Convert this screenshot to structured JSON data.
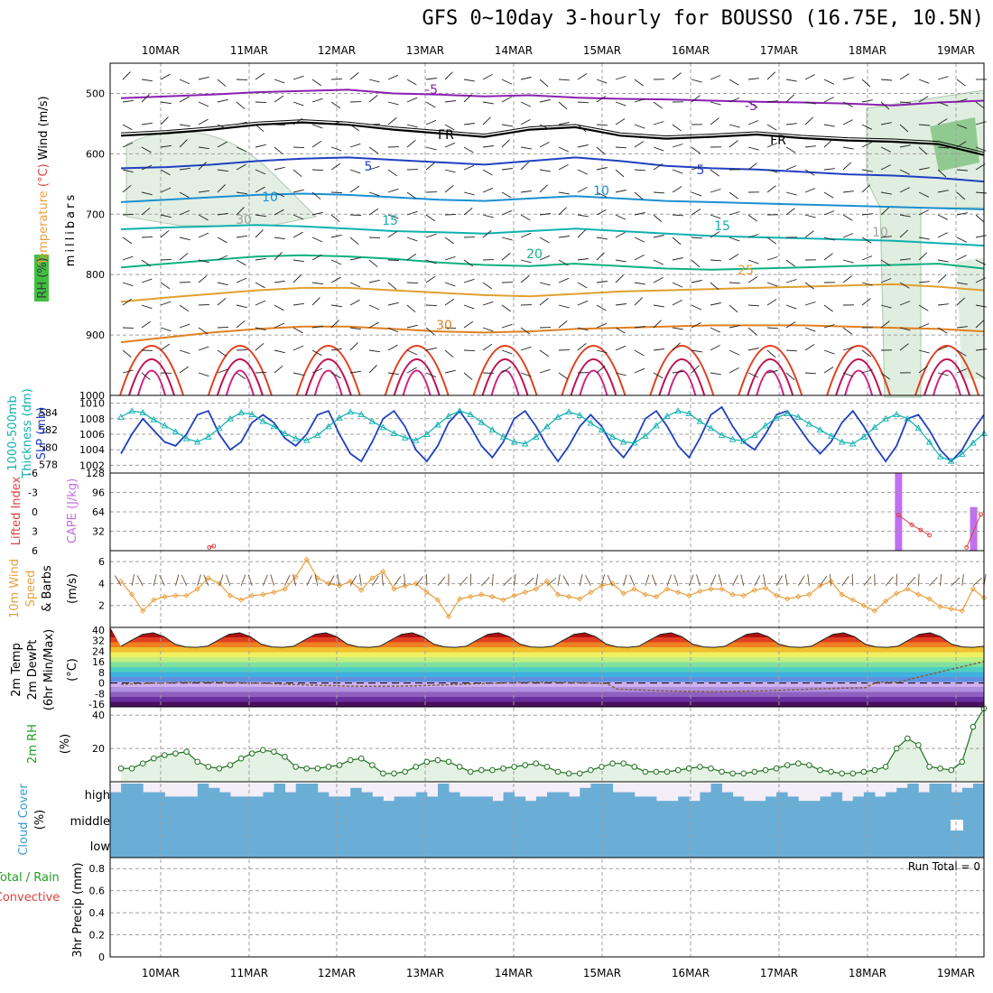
{
  "title": "GFS 0~10day 3-hourly for BOUSSO (16.75E, 10.5N)",
  "dates": [
    "10MAR",
    "11MAR",
    "12MAR",
    "13MAR",
    "14MAR",
    "15MAR",
    "16MAR",
    "17MAR",
    "18MAR",
    "19MAR"
  ],
  "chart_data": [
    {
      "type": "line",
      "panel": "upper-air",
      "labels": {
        "left_parts": [
          {
            "text": "RH (%)",
            "color": "#3a3a3a"
          },
          {
            "text": "Temperature",
            "color": "#e8a040"
          },
          {
            "text": "(°C)",
            "color": "#e04040"
          },
          {
            "text": "Wind (m/s)",
            "color": "#000000"
          }
        ],
        "ylabel": "millibars"
      },
      "yticks": [
        500,
        600,
        700,
        800,
        900,
        1000
      ],
      "ylim": [
        450,
        1000
      ],
      "contour_labels": [
        {
          "text": "-5",
          "color": "#8a20b0"
        },
        {
          "text": "-5",
          "color": "#8a20b0"
        },
        {
          "text": "FR",
          "color": "#000000"
        },
        {
          "text": "FR",
          "color": "#000000"
        },
        {
          "text": "5",
          "color": "#2040c0"
        },
        {
          "text": "5",
          "color": "#2040c0"
        },
        {
          "text": "10",
          "color": "#1a90d0"
        },
        {
          "text": "10",
          "color": "#1a90d0"
        },
        {
          "text": "15",
          "color": "#10b0b0"
        },
        {
          "text": "15",
          "color": "#10b0b0"
        },
        {
          "text": "20",
          "color": "#10b080"
        },
        {
          "text": "25",
          "color": "#e0a030"
        },
        {
          "text": "30",
          "color": "#e08020"
        },
        {
          "text": "30",
          "color": "#a0a0a0"
        },
        {
          "text": "10",
          "color": "#a0a0a0"
        }
      ],
      "series": [
        {
          "name": "-5",
          "color": "#8a20b0",
          "mb": [
            508,
            505,
            502,
            498,
            496,
            494,
            500,
            502,
            505,
            503,
            507,
            509,
            510,
            512,
            514,
            515,
            517,
            520,
            515,
            512
          ]
        },
        {
          "name": "FR",
          "color": "#000000",
          "mb": [
            570,
            566,
            560,
            552,
            548,
            552,
            560,
            566,
            572,
            560,
            556,
            570,
            575,
            572,
            568,
            574,
            578,
            580,
            584,
            602
          ]
        },
        {
          "name": "5",
          "color": "#2040c0",
          "mb": [
            624,
            622,
            618,
            612,
            608,
            606,
            610,
            614,
            618,
            612,
            606,
            612,
            620,
            624,
            626,
            630,
            634,
            636,
            640,
            646
          ]
        },
        {
          "name": "10",
          "color": "#1a90d0",
          "mb": [
            680,
            676,
            672,
            668,
            666,
            668,
            672,
            676,
            678,
            674,
            670,
            674,
            678,
            680,
            682,
            684,
            686,
            688,
            690,
            692
          ]
        },
        {
          "name": "15",
          "color": "#10b0b0",
          "mb": [
            725,
            722,
            720,
            718,
            720,
            724,
            728,
            730,
            732,
            728,
            724,
            728,
            732,
            736,
            738,
            740,
            742,
            744,
            748,
            752
          ]
        },
        {
          "name": "20",
          "color": "#10b080",
          "mb": [
            788,
            782,
            776,
            770,
            768,
            770,
            774,
            780,
            784,
            786,
            782,
            786,
            790,
            792,
            790,
            788,
            786,
            784,
            782,
            790
          ]
        },
        {
          "name": "25",
          "color": "#e0a030",
          "mb": [
            845,
            838,
            832,
            826,
            822,
            822,
            826,
            830,
            834,
            836,
            832,
            828,
            826,
            824,
            822,
            820,
            818,
            816,
            820,
            826
          ]
        },
        {
          "name": "30",
          "color": "#e08020",
          "mb": [
            912,
            904,
            896,
            890,
            886,
            886,
            890,
            894,
            896,
            894,
            890,
            888,
            886,
            884,
            884,
            884,
            886,
            888,
            890,
            894
          ]
        }
      ]
    },
    {
      "type": "line",
      "panel": "slp-thickness",
      "labels": {
        "left_parts": [
          {
            "text": "1000-500mb",
            "color": "#10b0b0"
          },
          {
            "text": "Thickness (dm)",
            "color": "#10b0b0"
          },
          {
            "text": "SLP (mb)",
            "color": "#2040c0"
          }
        ]
      },
      "yticks_left": [
        578,
        580,
        582,
        584
      ],
      "yticks_right": [
        1002,
        1004,
        1006,
        1008,
        1010
      ],
      "ylim_left": [
        577,
        586
      ],
      "ylim_right": [
        1001,
        1011
      ],
      "series": [
        {
          "name": "SLP (mb)",
          "color": "#2040c0",
          "axis": "right",
          "y": [
            1003.5,
            1006,
            1008,
            1006.5,
            1005,
            1004.5,
            1006,
            1008.5,
            1009,
            1006,
            1004,
            1005,
            1007.5,
            1008.5,
            1007.5,
            1005.5,
            1004.5,
            1006,
            1008.5,
            1009,
            1006,
            1003.5,
            1002.5,
            1005,
            1008,
            1009,
            1007,
            1004,
            1002.5,
            1004.5,
            1007.5,
            1009,
            1007,
            1004.5,
            1003,
            1005,
            1008,
            1009,
            1007,
            1004.5,
            1002.5,
            1004.5,
            1007,
            1008.5,
            1007,
            1004.5,
            1003,
            1005,
            1008,
            1009,
            1007,
            1004.5,
            1003,
            1005.5,
            1008.5,
            1009.5,
            1007,
            1005,
            1004,
            1006,
            1008.5,
            1009,
            1007,
            1005,
            1003.5,
            1005,
            1007.5,
            1009,
            1007,
            1004.5,
            1002.5,
            1004.5,
            1008,
            1008.5,
            1006.5,
            1004,
            1002.5,
            1004,
            1006.5,
            1008.5
          ]
        },
        {
          "name": "Thickness (dm)",
          "color": "#10b0b0",
          "axis": "left",
          "y": [
            583.5,
            584.2,
            584.0,
            583.2,
            582.5,
            581.8,
            581.0,
            580.6,
            581.2,
            582.2,
            583.3,
            584.0,
            583.8,
            583.0,
            582.4,
            581.6,
            581.0,
            580.8,
            581.4,
            582.4,
            583.4,
            584.1,
            583.8,
            583.0,
            582.3,
            581.6,
            581.1,
            580.8,
            581.5,
            582.6,
            583.6,
            584.2,
            583.8,
            582.9,
            582.0,
            581.2,
            580.6,
            580.4,
            581.2,
            582.4,
            583.5,
            584.1,
            583.7,
            582.8,
            582.0,
            581.2,
            580.6,
            580.5,
            581.3,
            582.5,
            583.6,
            584.2,
            583.9,
            583.0,
            582.2,
            581.4,
            580.9,
            580.7,
            581.4,
            582.5,
            583.4,
            583.9,
            583.5,
            582.7,
            582.0,
            581.3,
            580.6,
            580.4,
            581.2,
            582.3,
            583.3,
            583.8,
            583.3,
            582.2,
            580.6,
            578.9,
            578.4,
            579.2,
            580.5,
            581.6
          ]
        }
      ]
    },
    {
      "type": "bar",
      "panel": "cape-li",
      "labels": {
        "left_parts": [
          {
            "text": "Lifted Index",
            "color": "#e04040"
          },
          {
            "text": "CAPE (J/kg)",
            "color": "#c070e0"
          }
        ]
      },
      "yticks_left": [
        6,
        3,
        0,
        -3,
        -6
      ],
      "yticks_right": [
        32,
        64,
        96,
        128
      ],
      "ylim_right": [
        0,
        128
      ],
      "cape_bars": [
        {
          "date_index": 8.35,
          "value": 128
        },
        {
          "date_index": 9.2,
          "value": 72
        }
      ],
      "li_points": [
        {
          "date_index": 0.55,
          "value": 5.5
        },
        {
          "date_index": 0.6,
          "value": 5.3
        },
        {
          "date_index": 8.35,
          "value": 0.5
        },
        {
          "date_index": 8.5,
          "value": 2.0
        },
        {
          "date_index": 8.6,
          "value": 2.8
        },
        {
          "date_index": 8.7,
          "value": 3.6
        },
        {
          "date_index": 9.12,
          "value": 5.5
        },
        {
          "date_index": 9.28,
          "value": 0.4
        }
      ]
    },
    {
      "type": "line",
      "panel": "10m-wind",
      "labels": {
        "left_parts": [
          {
            "text": "10m Wind",
            "color": "#e8a040"
          },
          {
            "text": "Speed",
            "color": "#e8a040"
          },
          {
            "text": "& Barbs",
            "color": "#000000"
          },
          {
            "text": "(m/s)",
            "color": "#000000"
          }
        ]
      },
      "yticks": [
        2,
        4,
        6
      ],
      "ylim": [
        0,
        7
      ],
      "series": [
        {
          "name": "Speed",
          "color": "#e8a040",
          "y": [
            4.2,
            3.0,
            1.5,
            2.5,
            2.8,
            2.9,
            2.9,
            3.5,
            4.5,
            4.0,
            2.9,
            2.5,
            2.9,
            3.0,
            3.2,
            3.5,
            4.6,
            6.2,
            4.5,
            4.0,
            3.8,
            4.2,
            3.4,
            4.5,
            5.1,
            3.5,
            3.8,
            4.0,
            3.2,
            2.5,
            1.0,
            2.6,
            2.8,
            3.0,
            2.8,
            2.5,
            2.9,
            3.2,
            3.5,
            4.2,
            3.0,
            2.8,
            2.6,
            3.2,
            3.8,
            4.0,
            3.1,
            3.5,
            3.0,
            2.8,
            3.5,
            3.2,
            2.9,
            3.3,
            3.5,
            3.5,
            3.0,
            2.9,
            3.4,
            3.6,
            2.9,
            2.6,
            2.8,
            3.0,
            3.8,
            4.2,
            3.0,
            2.5,
            2.0,
            1.5,
            2.4,
            3.1,
            3.5,
            3.0,
            2.6,
            1.9,
            1.7,
            1.5,
            3.5,
            2.7
          ]
        }
      ]
    },
    {
      "type": "area",
      "panel": "2m-temp",
      "labels": {
        "left_parts": [
          {
            "text": "2m Temp",
            "color": "#000000"
          },
          {
            "text": "2m DewPt",
            "color": "#000000"
          },
          {
            "text": "(6hr Min/Max)",
            "color": "#000000"
          },
          {
            "text": "(°C)",
            "color": "#000000"
          }
        ]
      },
      "yticks": [
        40,
        32,
        24,
        16,
        8,
        0,
        -8,
        -16
      ],
      "ylim": [
        -18,
        42
      ],
      "color_bands": [
        "#4a1060",
        "#6a30a0",
        "#9060c0",
        "#b090e0",
        "#d0b0f0",
        "#6090e0",
        "#40b0e0",
        "#50d0c0",
        "#80e0a0",
        "#c0f080",
        "#f0f060",
        "#f0c030",
        "#f08020",
        "#e04020",
        "#b01010",
        "#700000"
      ]
    },
    {
      "type": "area",
      "panel": "2m-rh",
      "labels": {
        "left_parts": [
          {
            "text": "2m RH",
            "color": "#20a020"
          },
          {
            "text": "(%)",
            "color": "#000000"
          }
        ]
      },
      "yticks": [
        20,
        40
      ],
      "ylim": [
        0,
        45
      ],
      "series": [
        {
          "name": "2m RH",
          "color": "#207020",
          "y": [
            8,
            8,
            11,
            14,
            16,
            17,
            18,
            12,
            9,
            8,
            10,
            14,
            17,
            19,
            18,
            15,
            9,
            8,
            8,
            9,
            10,
            13,
            14,
            10,
            5,
            5,
            6,
            9,
            12,
            13,
            12,
            9,
            6,
            7,
            7,
            8,
            9,
            10,
            11,
            9,
            6,
            5,
            5,
            7,
            9,
            11,
            11,
            9,
            6,
            6,
            6,
            7,
            8,
            9,
            8,
            6,
            5,
            5,
            6,
            7,
            8,
            10,
            11,
            10,
            7,
            6,
            5,
            5,
            6,
            7,
            9,
            20,
            26,
            22,
            9,
            8,
            7,
            12,
            33,
            44
          ]
        }
      ]
    },
    {
      "type": "bar",
      "panel": "cloud-cover",
      "labels": {
        "left_parts": [
          {
            "text": "Cloud Cover",
            "color": "#3a9ad0"
          },
          {
            "text": "(%)",
            "color": "#000000"
          }
        ]
      },
      "levels": [
        "high",
        "middle",
        "low"
      ],
      "high": [
        60,
        100,
        100,
        60,
        60,
        40,
        40,
        40,
        100,
        80,
        60,
        40,
        40,
        40,
        60,
        100,
        60,
        100,
        100,
        60,
        40,
        40,
        80,
        60,
        40,
        20,
        40,
        40,
        60,
        40,
        100,
        60,
        40,
        40,
        40,
        20,
        60,
        40,
        20,
        40,
        60,
        60,
        40,
        80,
        100,
        100,
        60,
        60,
        40,
        40,
        20,
        20,
        40,
        20,
        60,
        100,
        60,
        40,
        20,
        20,
        40,
        60,
        40,
        20,
        20,
        40,
        60,
        20,
        40,
        60,
        40,
        60,
        80,
        100,
        60,
        100,
        100,
        60,
        80,
        100
      ],
      "middle_gap": {
        "date_index": 9.0,
        "value": 20
      }
    },
    {
      "type": "bar",
      "panel": "precip",
      "labels": {
        "left_parts": [
          {
            "text": "Total / Rain",
            "color": "#20a020"
          },
          {
            "text": "Convective",
            "color": "#e04040"
          },
          {
            "text": "3hr Precip (mm)",
            "color": "#000000"
          }
        ]
      },
      "yticks": [
        0,
        0.2,
        0.4,
        0.6,
        0.8
      ],
      "ylim": [
        0,
        0.9
      ],
      "run_total": "Run Total = 0",
      "values": []
    }
  ]
}
